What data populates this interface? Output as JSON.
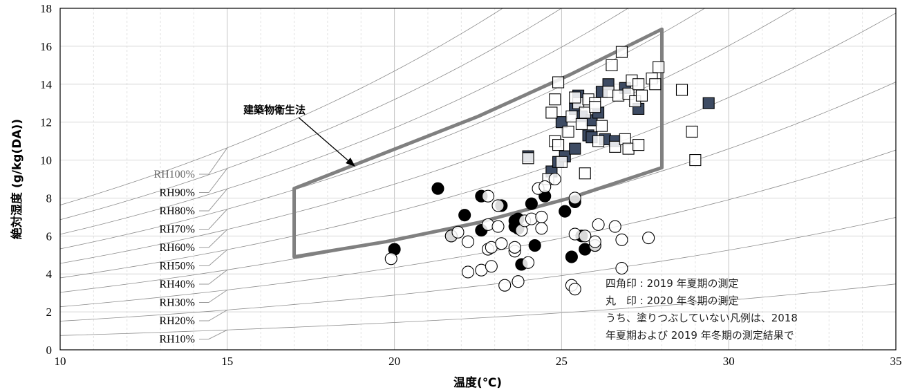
{
  "chart_data": {
    "type": "scatter",
    "title": "",
    "xlabel": "温度(℃)",
    "ylabel": "絶対湿度 (g/kg(DA))",
    "xlim": [
      10,
      35
    ],
    "ylim": [
      0,
      18
    ],
    "xticks": [
      10,
      15,
      20,
      25,
      30,
      35
    ],
    "yticks": [
      0,
      2,
      4,
      6,
      8,
      10,
      12,
      14,
      16,
      18
    ],
    "grid": true,
    "rh_curves": [
      {
        "label": "RH100%",
        "rh": 100
      },
      {
        "label": "RH90%",
        "rh": 90
      },
      {
        "label": "RH80%",
        "rh": 80
      },
      {
        "label": "RH70%",
        "rh": 70
      },
      {
        "label": "RH60%",
        "rh": 60
      },
      {
        "label": "RH50%",
        "rh": 50
      },
      {
        "label": "RH40%",
        "rh": 40
      },
      {
        "label": "RH30%",
        "rh": 30
      },
      {
        "label": "RH20%",
        "rh": 20
      },
      {
        "label": "RH10%",
        "rh": 10
      }
    ],
    "zone": {
      "label": "建築物衛生法",
      "polygon": [
        [
          17,
          4.9
        ],
        [
          17,
          8.5
        ],
        [
          28,
          16.9
        ],
        [
          28,
          9.6
        ]
      ],
      "color": "#808080"
    },
    "legend_lines": [
      "四角印 : 2019 年夏期の測定",
      "丸　印 : 2020 年冬期の測定",
      "うち、塗りつぶしていない凡例は、2018",
      "年夏期および 2019 年冬期の測定結果で"
    ],
    "series": [
      {
        "marker": "square",
        "filled": true,
        "fill": "#3d4b63",
        "points": [
          [
            24.0,
            10.2
          ],
          [
            24.7,
            9.4
          ],
          [
            24.9,
            9.9
          ],
          [
            25.1,
            10.2
          ],
          [
            25.4,
            10.6
          ],
          [
            25.0,
            12.0
          ],
          [
            25.4,
            12.7
          ],
          [
            25.5,
            13.4
          ],
          [
            25.6,
            12.3
          ],
          [
            25.9,
            12.1
          ],
          [
            25.8,
            11.3
          ],
          [
            25.9,
            11.2
          ],
          [
            26.1,
            12.5
          ],
          [
            26.2,
            13.6
          ],
          [
            26.4,
            14.0
          ],
          [
            26.3,
            11.1
          ],
          [
            26.6,
            11.0
          ],
          [
            26.9,
            13.8
          ],
          [
            27.3,
            12.7
          ],
          [
            29.4,
            13.0
          ]
        ]
      },
      {
        "marker": "square",
        "filled": false,
        "fill": "none",
        "points": [
          [
            24.0,
            10.1
          ],
          [
            24.6,
            9.0
          ],
          [
            24.8,
            11.0
          ],
          [
            24.9,
            10.8
          ],
          [
            25.0,
            9.9
          ],
          [
            24.7,
            12.5
          ],
          [
            24.8,
            13.2
          ],
          [
            24.9,
            14.1
          ],
          [
            25.2,
            11.5
          ],
          [
            25.3,
            12.3
          ],
          [
            25.5,
            13.0
          ],
          [
            25.4,
            13.3
          ],
          [
            25.6,
            11.9
          ],
          [
            25.7,
            12.5
          ],
          [
            25.8,
            13.2
          ],
          [
            25.7,
            9.3
          ],
          [
            26.0,
            13.0
          ],
          [
            26.0,
            12.8
          ],
          [
            26.1,
            11.0
          ],
          [
            26.2,
            11.8
          ],
          [
            26.4,
            13.6
          ],
          [
            26.5,
            15.0
          ],
          [
            26.6,
            10.7
          ],
          [
            26.7,
            13.4
          ],
          [
            26.8,
            15.7
          ],
          [
            26.9,
            11.1
          ],
          [
            27.0,
            10.6
          ],
          [
            27.0,
            13.5
          ],
          [
            27.1,
            14.2
          ],
          [
            27.2,
            13.1
          ],
          [
            27.3,
            14.0
          ],
          [
            27.3,
            10.8
          ],
          [
            27.4,
            13.4
          ],
          [
            27.7,
            14.3
          ],
          [
            27.8,
            14.0
          ],
          [
            27.9,
            14.9
          ],
          [
            28.6,
            13.7
          ],
          [
            28.9,
            11.5
          ],
          [
            29.0,
            10.0
          ]
        ]
      },
      {
        "marker": "circle",
        "filled": true,
        "fill": "#000000",
        "points": [
          [
            20.0,
            5.3
          ],
          [
            21.3,
            8.5
          ],
          [
            21.7,
            6.0
          ],
          [
            22.1,
            7.1
          ],
          [
            22.6,
            6.3
          ],
          [
            22.6,
            8.1
          ],
          [
            23.2,
            7.6
          ],
          [
            23.6,
            6.5
          ],
          [
            23.6,
            6.8
          ],
          [
            23.7,
            6.4
          ],
          [
            23.7,
            6.9
          ],
          [
            23.8,
            4.5
          ],
          [
            24.1,
            7.7
          ],
          [
            24.2,
            5.5
          ],
          [
            24.5,
            8.1
          ],
          [
            25.1,
            7.3
          ],
          [
            25.3,
            4.9
          ],
          [
            25.4,
            7.8
          ],
          [
            25.6,
            6.0
          ],
          [
            25.7,
            5.3
          ],
          [
            26.0,
            5.5
          ]
        ]
      },
      {
        "marker": "circle",
        "filled": false,
        "fill": "none",
        "points": [
          [
            19.9,
            4.8
          ],
          [
            21.7,
            6.0
          ],
          [
            21.9,
            6.2
          ],
          [
            22.2,
            5.7
          ],
          [
            22.2,
            4.1
          ],
          [
            22.6,
            4.2
          ],
          [
            22.8,
            5.3
          ],
          [
            22.8,
            6.6
          ],
          [
            22.8,
            8.1
          ],
          [
            22.9,
            5.4
          ],
          [
            22.9,
            4.4
          ],
          [
            23.1,
            7.6
          ],
          [
            23.1,
            6.5
          ],
          [
            23.2,
            5.6
          ],
          [
            23.3,
            3.4
          ],
          [
            23.6,
            5.2
          ],
          [
            23.6,
            5.4
          ],
          [
            23.7,
            3.6
          ],
          [
            23.8,
            6.3
          ],
          [
            23.9,
            6.8
          ],
          [
            24.0,
            4.6
          ],
          [
            24.1,
            6.9
          ],
          [
            24.3,
            8.5
          ],
          [
            24.4,
            7.0
          ],
          [
            24.4,
            6.4
          ],
          [
            24.5,
            8.6
          ],
          [
            24.8,
            9.0
          ],
          [
            25.3,
            3.4
          ],
          [
            25.4,
            3.2
          ],
          [
            25.4,
            6.1
          ],
          [
            25.4,
            8.0
          ],
          [
            25.7,
            6.0
          ],
          [
            26.0,
            5.5
          ],
          [
            26.0,
            5.7
          ],
          [
            26.1,
            6.6
          ],
          [
            26.6,
            6.5
          ],
          [
            26.8,
            4.3
          ],
          [
            26.8,
            5.8
          ],
          [
            27.6,
            5.9
          ]
        ]
      }
    ]
  }
}
